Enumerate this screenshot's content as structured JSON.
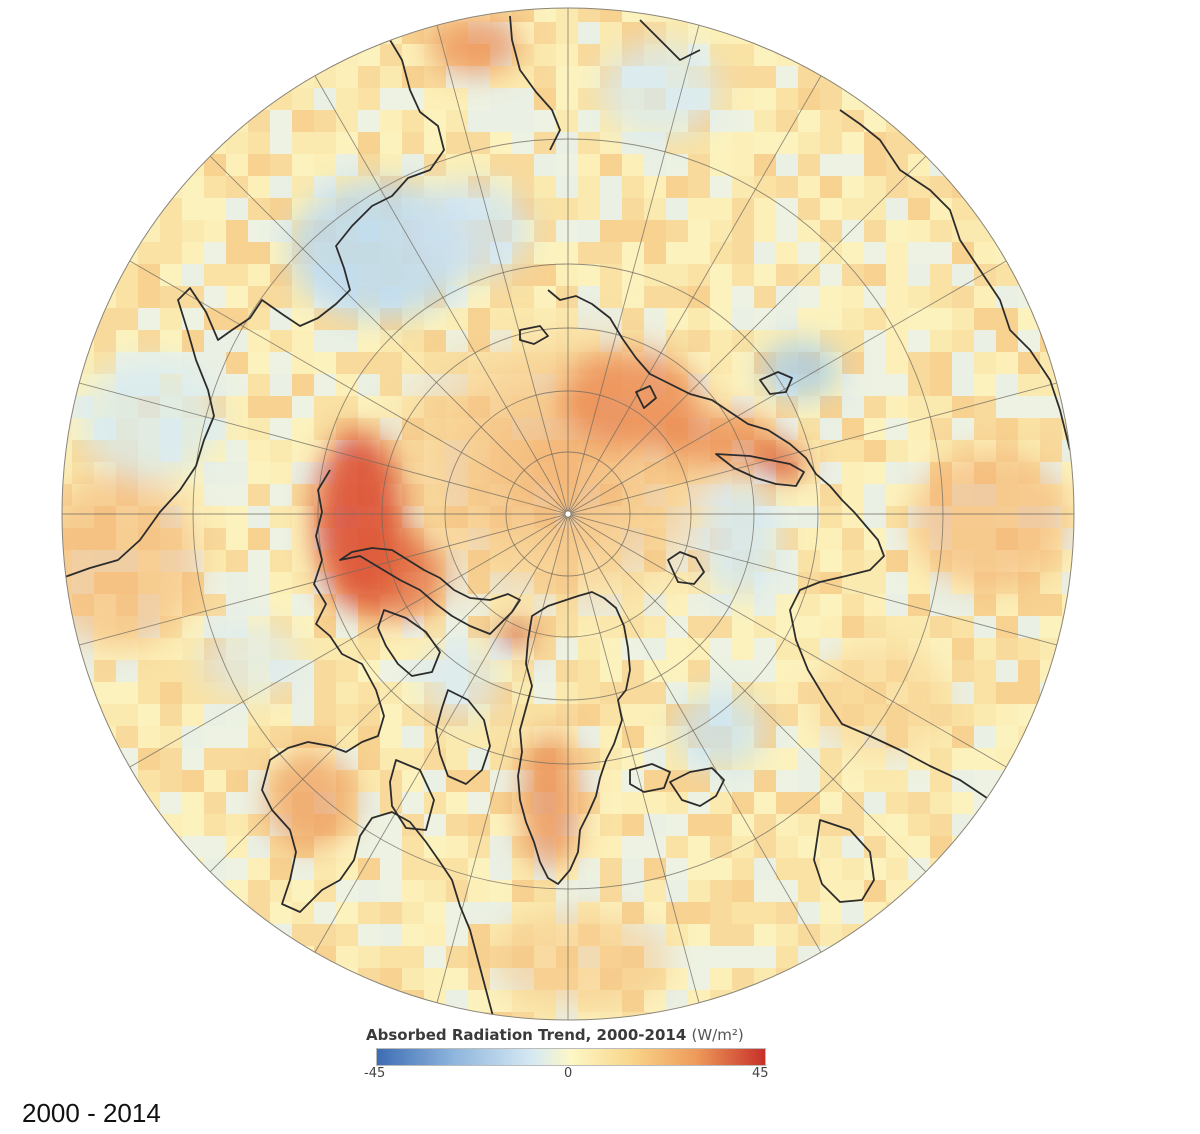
{
  "map": {
    "projection": "north polar stereographic",
    "center": "North Pole",
    "features": [
      "coastlines",
      "latitude-circles",
      "longitude-lines",
      "trend-grid"
    ],
    "palette": {
      "min": "#3d6cb4",
      "mid": "#fdf7c6",
      "max": "#c7302a"
    }
  },
  "legend": {
    "title": "Absorbed Radiation Trend, 2000-2014",
    "units": "(W/m²)",
    "min_label": "-45",
    "mid_label": "0",
    "max_label": "45",
    "min": -45,
    "max": 45
  },
  "caption": "2000 - 2014"
}
